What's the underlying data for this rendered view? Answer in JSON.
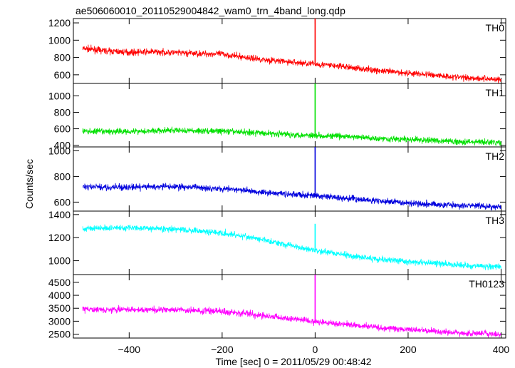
{
  "chart_data": {
    "type": "line",
    "title": "ae506060010_20110529004842_wam0_trn_4band_long.qdp",
    "xlabel": "Time [sec] 0 = 2011/05/29 00:48:42",
    "ylabel": "Counts/sec",
    "xlim": [
      -520,
      410
    ],
    "x_ticks": [
      -400,
      -200,
      0,
      200,
      400
    ],
    "x_tick_labels": [
      "−400",
      "−200",
      "0",
      "200",
      "400"
    ],
    "panels": [
      {
        "name": "TH0",
        "color": "#ff0000",
        "ylim": [
          500,
          1250
        ],
        "y_ticks": [
          600,
          800,
          1000,
          1200
        ],
        "x": [
          -500,
          -450,
          -400,
          -350,
          -300,
          -250,
          -200,
          -150,
          -100,
          -50,
          0,
          50,
          100,
          150,
          200,
          250,
          300,
          350,
          400
        ],
        "y": [
          905,
          875,
          860,
          865,
          855,
          845,
          840,
          800,
          770,
          745,
          725,
          700,
          670,
          640,
          620,
          600,
          575,
          560,
          545
        ],
        "spike": {
          "x": 0,
          "y": 1250
        }
      },
      {
        "name": "TH1",
        "color": "#00e000",
        "ylim": [
          380,
          1150
        ],
        "y_ticks": [
          400,
          600,
          800,
          1000
        ],
        "x": [
          -500,
          -450,
          -400,
          -350,
          -300,
          -250,
          -200,
          -150,
          -100,
          -50,
          0,
          50,
          100,
          150,
          200,
          250,
          300,
          350,
          400
        ],
        "y": [
          570,
          565,
          570,
          575,
          580,
          575,
          570,
          560,
          545,
          530,
          520,
          510,
          495,
          480,
          470,
          460,
          445,
          440,
          430
        ],
        "spike": {
          "x": 0,
          "y": 1150
        }
      },
      {
        "name": "TH2",
        "color": "#0000dd",
        "ylim": [
          530,
          1030
        ],
        "y_ticks": [
          600,
          800,
          1000
        ],
        "x": [
          -500,
          -450,
          -400,
          -350,
          -300,
          -250,
          -200,
          -150,
          -100,
          -50,
          0,
          50,
          100,
          150,
          200,
          250,
          300,
          350,
          400
        ],
        "y": [
          720,
          715,
          715,
          720,
          720,
          715,
          705,
          690,
          675,
          660,
          650,
          635,
          620,
          605,
          595,
          585,
          575,
          570,
          560
        ],
        "spike": {
          "x": 0,
          "y": 1030
        }
      },
      {
        "name": "TH3",
        "color": "#00ffff",
        "ylim": [
          880,
          1430
        ],
        "y_ticks": [
          1000,
          1200,
          1400
        ],
        "x": [
          -500,
          -450,
          -400,
          -350,
          -300,
          -250,
          -200,
          -150,
          -100,
          -50,
          0,
          50,
          100,
          150,
          200,
          250,
          300,
          350,
          400
        ],
        "y": [
          1280,
          1285,
          1285,
          1280,
          1270,
          1260,
          1240,
          1210,
          1170,
          1130,
          1090,
          1060,
          1030,
          1010,
          990,
          980,
          965,
          955,
          945
        ],
        "spike": {
          "x": 0,
          "y": 1320
        }
      },
      {
        "name": "TH0123",
        "color": "#ff00ff",
        "ylim": [
          2350,
          4800
        ],
        "y_ticks": [
          2500,
          3000,
          3500,
          4000,
          4500
        ],
        "x": [
          -500,
          -450,
          -400,
          -350,
          -300,
          -250,
          -200,
          -150,
          -100,
          -50,
          0,
          50,
          100,
          150,
          200,
          250,
          300,
          350,
          400
        ],
        "y": [
          3460,
          3450,
          3440,
          3440,
          3430,
          3410,
          3390,
          3300,
          3200,
          3090,
          2990,
          2900,
          2820,
          2740,
          2680,
          2620,
          2560,
          2530,
          2480
        ],
        "spike": {
          "x": 0,
          "y": 4800
        }
      }
    ]
  }
}
